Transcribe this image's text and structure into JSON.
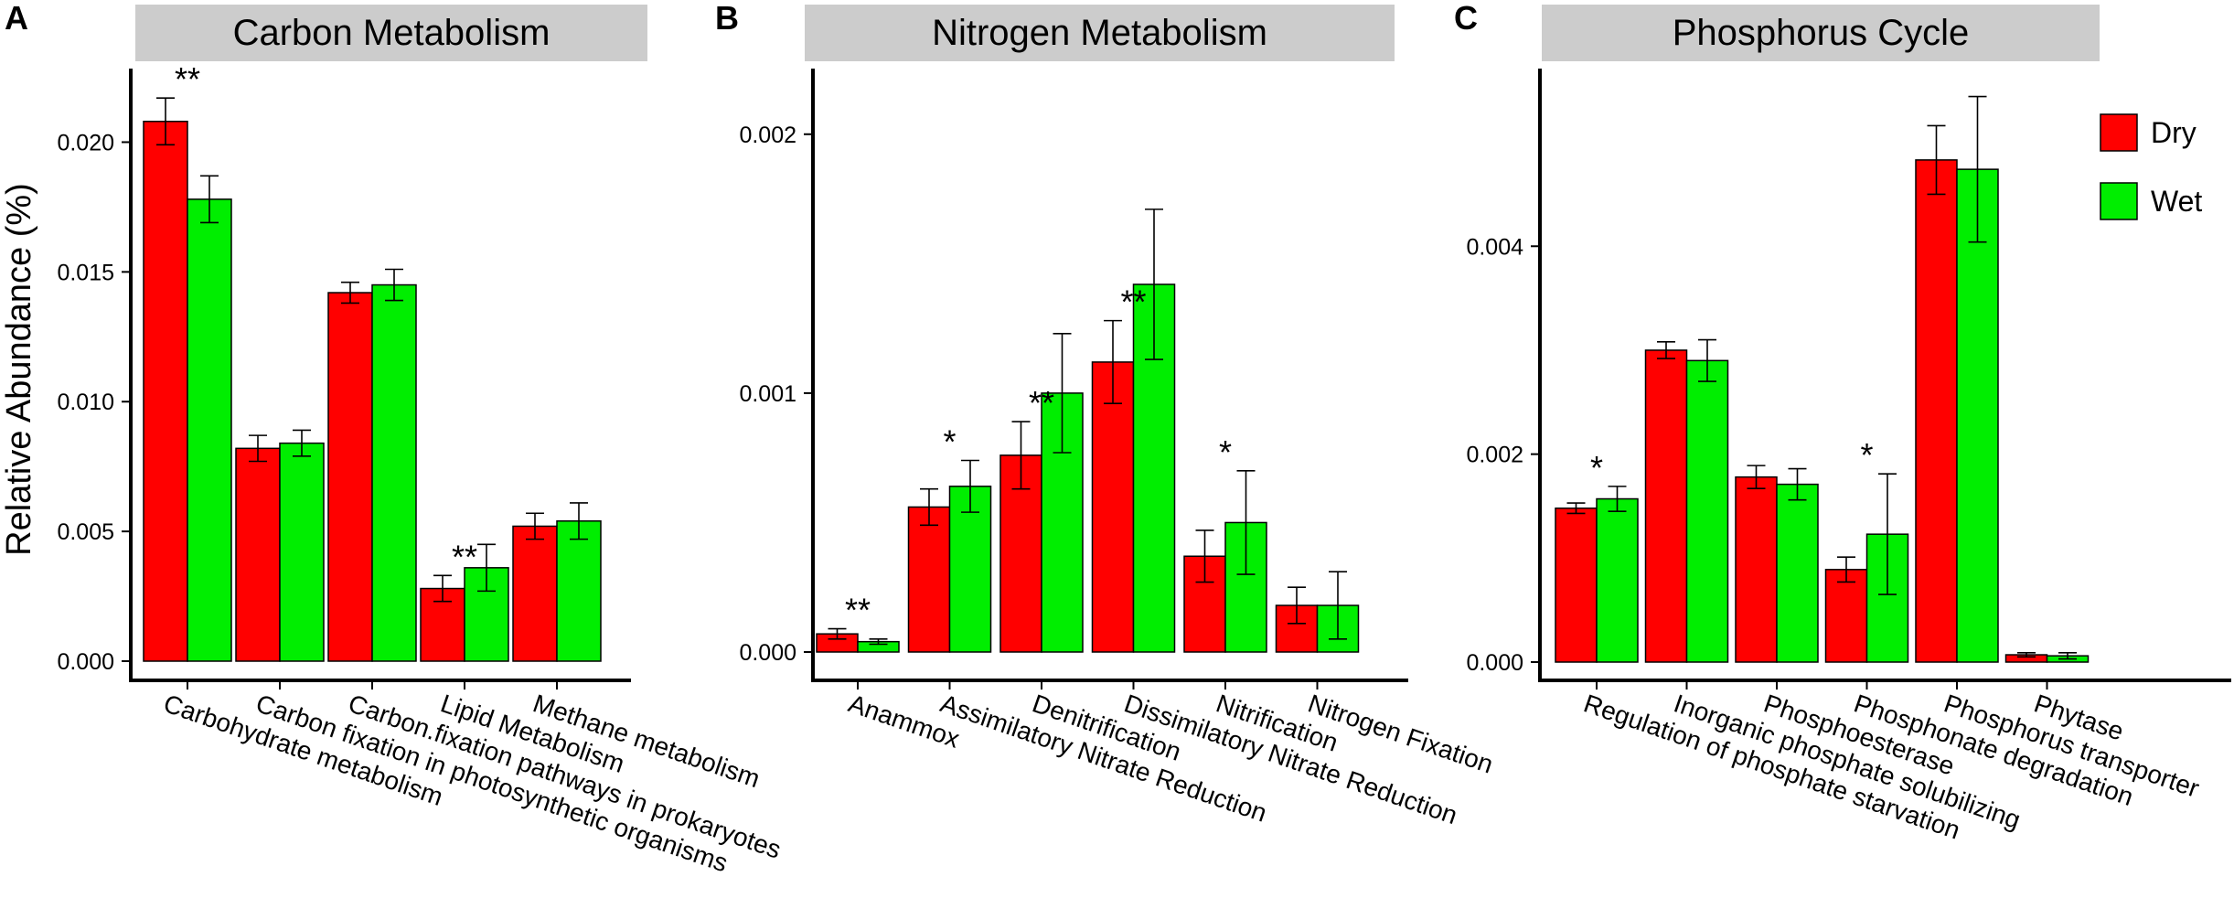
{
  "ylabel": "Relative Abundance (%)",
  "legend": [
    {
      "name": "Dry",
      "color": "#ff0000"
    },
    {
      "name": "Wet",
      "color": "#00ee00"
    }
  ],
  "chart_data": [
    {
      "type": "bar",
      "letter": "A",
      "title": "Carbon Metabolism",
      "categories": [
        "Carbohydrate metabolism",
        "Carbon fixation in photosynthetic organisms",
        "Carbon.fixation pathways in prokaryotes",
        "Lipid Metabolism",
        "Methane metabolism"
      ],
      "series": [
        {
          "name": "Dry",
          "values": [
            0.0208,
            0.0082,
            0.0142,
            0.0028,
            0.0052
          ],
          "errors": [
            0.0009,
            0.0005,
            0.0004,
            0.0005,
            0.0005
          ]
        },
        {
          "name": "Wet",
          "values": [
            0.0178,
            0.0084,
            0.0145,
            0.0036,
            0.0054
          ],
          "errors": [
            0.0009,
            0.0005,
            0.0006,
            0.0009,
            0.0007
          ]
        }
      ],
      "significance": [
        "**",
        "",
        "",
        "**",
        ""
      ],
      "yticks": [
        "0.000",
        "0.005",
        "0.010",
        "0.015",
        "0.020"
      ],
      "ylim": [
        -0.0001,
        0.0228
      ]
    },
    {
      "type": "bar",
      "letter": "B",
      "title": "Nitrogen Metabolism",
      "categories": [
        "Anammox",
        "Assimilatory Nitrate Reduction",
        "Denitrification",
        "Dissimilatory Nitrate Reduction",
        "Nitrification",
        "Nitrogen Fixation"
      ],
      "series": [
        {
          "name": "Dry",
          "values": [
            7e-05,
            0.00056,
            0.00076,
            0.00112,
            0.00037,
            0.00018
          ],
          "errors": [
            2e-05,
            7e-05,
            0.00013,
            0.00016,
            0.0001,
            7e-05
          ]
        },
        {
          "name": "Wet",
          "values": [
            4e-05,
            0.00064,
            0.001,
            0.00142,
            0.0005,
            0.00018
          ],
          "errors": [
            1e-05,
            0.0001,
            0.00023,
            0.00029,
            0.0002,
            0.00013
          ]
        }
      ],
      "significance": [
        "**",
        "*",
        "**",
        "**",
        "*",
        ""
      ],
      "yticks": [
        "0.000",
        "0.001",
        "0.002"
      ],
      "ylim": [
        -0.00012,
        0.00225
      ]
    },
    {
      "type": "bar",
      "letter": "C",
      "title": "Phosphorus Cycle",
      "categories": [
        "Regulation of phosphate starvation",
        "Inorganic phosphate solubilizing",
        "Phosphoesterase",
        "Phosphonate degradation",
        "Phosphorus transporter",
        "Phytase"
      ],
      "series": [
        {
          "name": "Dry",
          "values": [
            0.00148,
            0.003,
            0.00178,
            0.00089,
            0.00483,
            7e-05
          ],
          "errors": [
            5e-05,
            8e-05,
            0.00011,
            0.00012,
            0.00033,
            2e-05
          ]
        },
        {
          "name": "Wet",
          "values": [
            0.00157,
            0.0029,
            0.00171,
            0.00123,
            0.00474,
            6e-05
          ],
          "errors": [
            0.00012,
            0.0002,
            0.00015,
            0.00058,
            0.0007,
            3e-05
          ]
        }
      ],
      "significance": [
        "*",
        "",
        "",
        "*",
        "",
        ""
      ],
      "yticks": [
        "0.000",
        "0.002",
        "0.004"
      ],
      "ylim": [
        -0.0002,
        0.0057
      ]
    }
  ]
}
